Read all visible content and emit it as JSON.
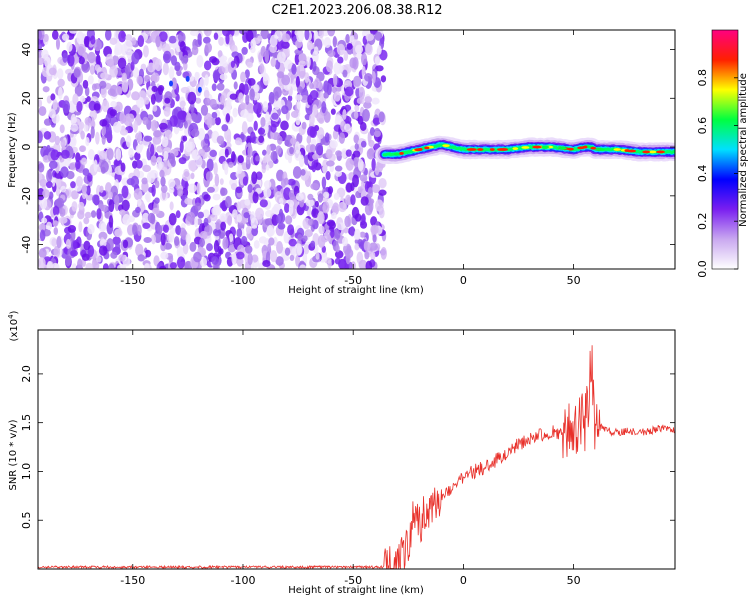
{
  "page_title": "C2E1.2023.206.08.38.R12",
  "colorbar": {
    "label": "Normalized spectral amplitude",
    "ticks": [
      "0.0",
      "0.2",
      "0.4",
      "0.6",
      "0.8"
    ],
    "tick_values": [
      0.0,
      0.2,
      0.4,
      0.6,
      0.8
    ],
    "range": [
      0,
      1
    ],
    "colors": [
      "#ffffff",
      "#c9a8f0",
      "#7a1ff0",
      "#0000ff",
      "#00e0ff",
      "#00ff40",
      "#ffff00",
      "#ff2000",
      "#ff0080"
    ]
  },
  "chart_data": [
    {
      "type": "heatmap",
      "title": "",
      "xlabel": "Height of straight line (km)",
      "ylabel": "Frequency (Hz)",
      "xlim": [
        -193,
        96
      ],
      "ylim": [
        -50,
        48
      ],
      "x_ticks": [
        -150,
        -100,
        -50,
        0,
        50
      ],
      "x_tick_labels": [
        "-150",
        "-100",
        "-50",
        "0",
        "50"
      ],
      "y_ticks": [
        -40,
        -20,
        0,
        20,
        40
      ],
      "y_tick_labels": [
        "-40",
        "-20",
        "0",
        "20",
        "40"
      ],
      "noise_region_x": [
        -193,
        -36
      ],
      "signal_band": {
        "x": [
          -36,
          -30,
          -25,
          -20,
          -15,
          -10,
          -5,
          0,
          10,
          20,
          30,
          40,
          50,
          55,
          58,
          60,
          70,
          80,
          96
        ],
        "y": [
          -3,
          -3,
          -2,
          -1,
          0,
          1,
          0,
          -1,
          -1,
          -1,
          0,
          0,
          -1,
          0,
          0,
          -1,
          -1,
          -2,
          -2
        ]
      },
      "grid": false
    },
    {
      "type": "line",
      "title": "",
      "xlabel": "Height of straight line (km)",
      "ylabel": "SNR (10 * v/v)",
      "y_multiplier": "(x10",
      "y_multiplier_exp": "4",
      "y_multiplier_close": ")",
      "xlim": [
        -193,
        96
      ],
      "ylim": [
        0,
        2.45
      ],
      "x_ticks": [
        -150,
        -100,
        -50,
        0,
        50
      ],
      "x_tick_labels": [
        "-150",
        "-100",
        "-50",
        "0",
        "50"
      ],
      "y_ticks": [
        0.5,
        1.0,
        1.5,
        2.0
      ],
      "y_tick_labels": [
        "0.5",
        "1.0",
        "1.5",
        "2.0"
      ],
      "series": [
        {
          "color": "#e8302a",
          "x": [
            -193,
            -150,
            -100,
            -50,
            -36,
            -30,
            -25,
            -22,
            -20,
            -18,
            -15,
            -12,
            -10,
            -5,
            0,
            5,
            10,
            15,
            20,
            25,
            30,
            35,
            40,
            45,
            50,
            52,
            55,
            57,
            58,
            60,
            62,
            65,
            70,
            75,
            80,
            85,
            90,
            96
          ],
          "y": [
            0.02,
            0.02,
            0.02,
            0.02,
            0.02,
            0.03,
            0.25,
            0.6,
            0.45,
            0.55,
            0.6,
            0.7,
            0.75,
            0.85,
            0.95,
            1.0,
            1.05,
            1.12,
            1.2,
            1.28,
            1.33,
            1.38,
            1.4,
            1.4,
            1.38,
            1.45,
            1.5,
            1.75,
            2.2,
            1.35,
            1.45,
            1.42,
            1.4,
            1.42,
            1.4,
            1.42,
            1.45,
            1.42
          ]
        }
      ],
      "grid": false
    }
  ]
}
